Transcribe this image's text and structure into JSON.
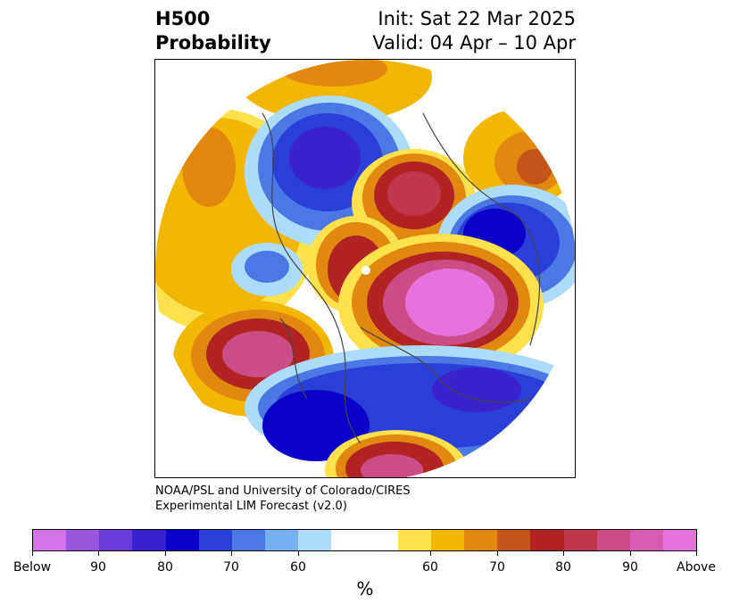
{
  "title": {
    "line1_left": "H500",
    "line2_left": "Probability",
    "line1_right": "Init: Sat 22 Mar 2025",
    "line2_right": "Valid: 04 Apr – 10 Apr"
  },
  "credit": {
    "line1": "NOAA/PSL and University of Colorado/CIRES",
    "line2": "Experimental LIM Forecast (v2.0)"
  },
  "colorbar": {
    "colors": [
      "#d473e8",
      "#9b56e0",
      "#6a3bd8",
      "#3b22cf",
      "#0a00c8",
      "#2a3fd8",
      "#4c78e6",
      "#76b0f0",
      "#addcfa",
      "#ffffff",
      "#ffffff",
      "#ffe14d",
      "#f2b705",
      "#e0880f",
      "#c5551a",
      "#b22323",
      "#c0364a",
      "#cc4d85",
      "#d65cb4",
      "#e673dc"
    ],
    "tick_labels": [
      "Below",
      "90",
      "80",
      "70",
      "60",
      "60",
      "70",
      "80",
      "90",
      "Above"
    ],
    "unit": "%"
  },
  "map": {
    "projection": "north-polar-stereographic",
    "features": [
      {
        "name": "above-anomaly-alaska-pacific",
        "category": "Above",
        "peak": "90"
      },
      {
        "name": "above-anomaly-east-pacific",
        "category": "Above",
        "peak": "90"
      },
      {
        "name": "above-anomaly-arctic",
        "category": "Above",
        "peak": "80"
      },
      {
        "name": "above-anomaly-north-europe",
        "category": "Above",
        "peak": "Above"
      },
      {
        "name": "above-anomaly-atlantic-south",
        "category": "Above",
        "peak": "90"
      },
      {
        "name": "below-anomaly-northwest-pacific",
        "category": "Below",
        "peak": "80"
      },
      {
        "name": "below-anomaly-siberia",
        "category": "Below",
        "peak": "80"
      },
      {
        "name": "below-anomaly-north-atlantic-europe",
        "category": "Below",
        "peak": "80"
      },
      {
        "name": "below-anomaly-north-america-south",
        "category": "Below",
        "peak": "80"
      }
    ]
  }
}
